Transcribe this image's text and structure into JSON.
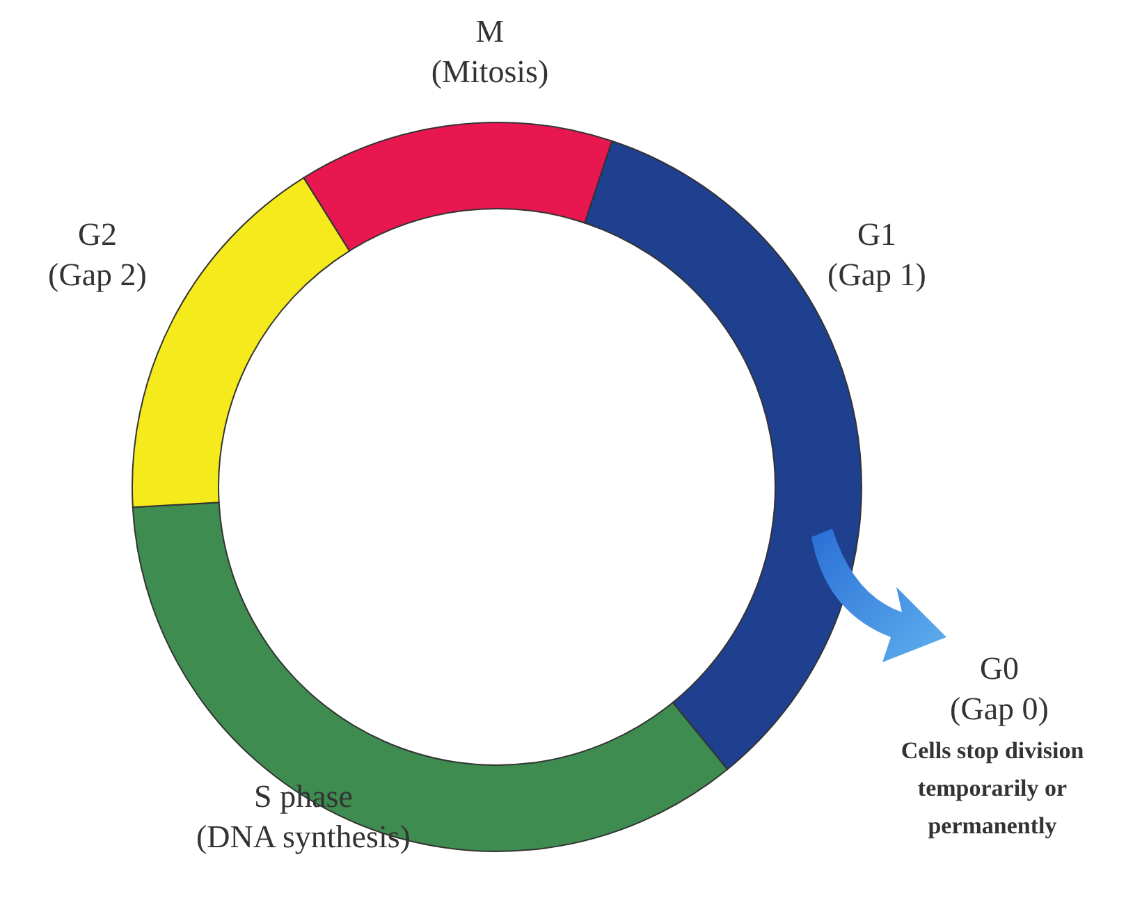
{
  "chart_data": {
    "type": "donut",
    "categories": [
      "M (Mitosis)",
      "G1 (Gap 1)",
      "S phase (DNA synthesis)",
      "G2 (Gap 2)"
    ],
    "values": [
      14,
      34,
      35,
      17
    ],
    "colors": [
      "#e8174f",
      "#1f3f8f",
      "#3e8c50",
      "#f5ea1c"
    ],
    "annotations": [
      "G0 (Gap 0)",
      "Cells stop division temporarily or permanently"
    ],
    "legend": false
  }
}
